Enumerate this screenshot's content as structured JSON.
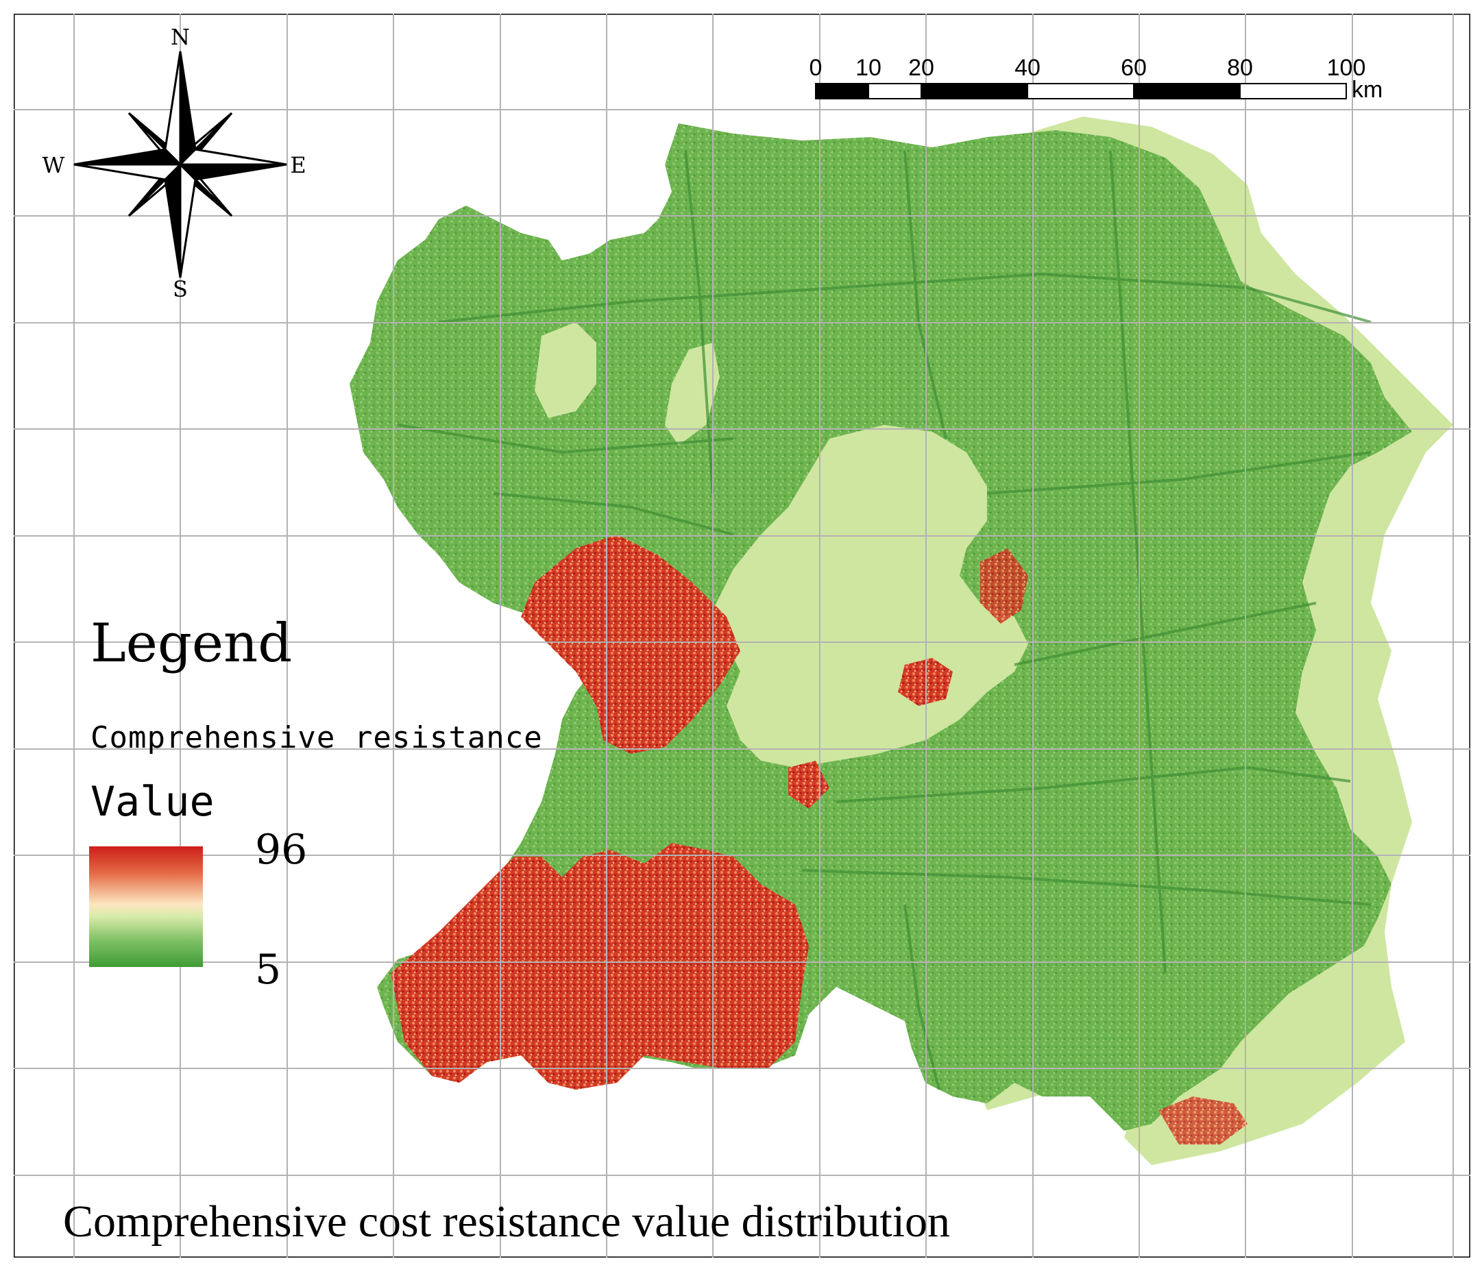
{
  "map": {
    "title": "Comprehensive cost resistance value distribution",
    "north_arrow": {
      "icon": "compass-rose-icon",
      "north": "N",
      "south": "S",
      "east": "E",
      "west": "W"
    },
    "scale_bar": {
      "ticks": [
        "0",
        "10",
        "20",
        "40",
        "60",
        "80",
        "100"
      ],
      "unit": "km"
    },
    "legend": {
      "title": "Legend",
      "layer_name": "Comprehensive resistance",
      "field": "Value",
      "max_label": "96",
      "min_label": "5",
      "ramp_colors": [
        "#cc1f1a",
        "#e46a45",
        "#fde6c2",
        "#d8ecaa",
        "#7fc063",
        "#3f9c37"
      ]
    },
    "colors": {
      "low_resistance": "#3f9c37",
      "mid_resistance": "#7fc063",
      "water_body": "#cfe6a0",
      "high_resistance": "#cc1f1a",
      "grid_line": "#b3b3b3"
    }
  }
}
